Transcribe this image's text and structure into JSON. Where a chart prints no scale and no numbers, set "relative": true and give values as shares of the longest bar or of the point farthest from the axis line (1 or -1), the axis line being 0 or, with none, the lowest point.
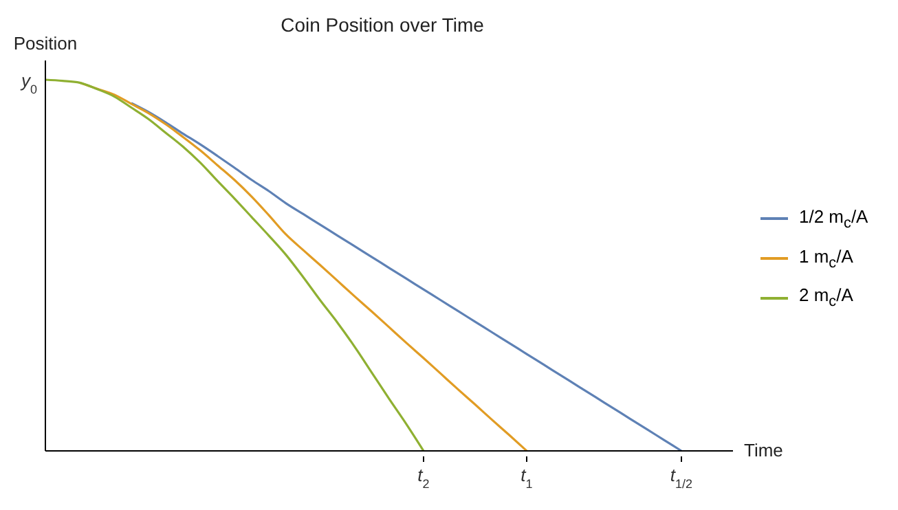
{
  "chart_data": {
    "type": "line",
    "title": "Coin Position over Time",
    "xlabel": "Time",
    "ylabel": "Position",
    "relative": true,
    "categories": [
      null,
      null,
      null,
      null,
      null,
      null,
      null,
      null,
      null,
      null,
      null,
      null,
      null,
      null,
      null,
      null,
      null,
      null,
      null,
      null,
      null,
      null,
      null,
      null,
      null,
      null,
      null,
      null,
      null,
      null,
      null,
      null,
      null,
      null,
      null,
      null,
      null,
      null,
      null,
      null,
      null
    ],
    "annotations": [
      "y$_{0}$",
      "t$_{1/2}$",
      "t$_{1}$",
      "t$_{2}$"
    ],
    "grid": false,
    "legend": "right",
    "marker": "none",
    "line_style": "solid",
    "series": [
      {
        "name": "1/2 m$_{c}$/A",
        "color": "#5e81b5",
        "values": [
          null,
          null,
          null,
          null,
          null,
          0.937,
          0.913,
          0.885,
          0.855,
          0.826,
          0.795,
          0.763,
          0.73,
          0.7,
          0.667,
          0.638,
          0.609,
          0.58,
          0.551,
          0.522,
          0.493,
          0.464,
          0.435,
          0.406,
          0.377,
          0.348,
          0.319,
          0.29,
          0.261,
          0.232,
          0.203,
          0.174,
          0.145,
          0.116,
          0.087,
          0.058,
          0.029,
          0,
          null,
          null,
          null
        ]
      },
      {
        "name": "1 m$_{c}$/A",
        "color": "#e19c24",
        "values": [
          null,
          null,
          0.992,
          0.976,
          0.96,
          0.935,
          0.91,
          0.88,
          0.846,
          0.81,
          0.77,
          0.73,
          0.685,
          0.635,
          0.583,
          0.541,
          0.5,
          0.458,
          0.416,
          0.375,
          0.333,
          0.291,
          0.25,
          0.208,
          0.166,
          0.125,
          0.083,
          0.042,
          0,
          null,
          null,
          null,
          null,
          null,
          null,
          null,
          null,
          null,
          null,
          null,
          null
        ]
      },
      {
        "name": "2 m$_{c}$/A",
        "color": "#8fb032",
        "values": [
          1,
          0.997,
          0.992,
          0.975,
          0.955,
          0.925,
          0.894,
          0.857,
          0.82,
          0.777,
          0.728,
          0.68,
          0.63,
          0.58,
          0.528,
          0.468,
          0.405,
          0.345,
          0.28,
          0.21,
          0.14,
          0.072,
          0,
          null,
          null,
          null,
          null,
          null,
          null,
          null,
          null,
          null,
          null,
          null,
          null,
          null,
          null,
          null,
          null,
          null,
          null
        ]
      }
    ]
  }
}
